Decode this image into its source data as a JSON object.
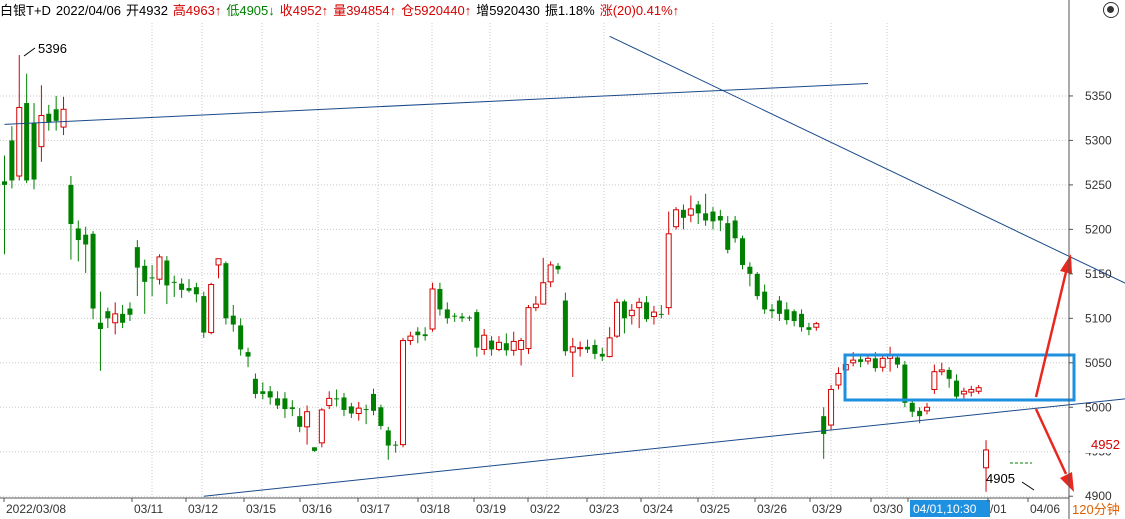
{
  "header": {
    "instrument": "白银T+D",
    "date": "2022/04/06",
    "open": "开4932",
    "high": "高4963↑",
    "low": "低4905↓",
    "close": "收4952↑",
    "volume": "量394854↑",
    "position": "仓5920440↑",
    "increase": "增5920430",
    "amplitude": "振1.18%",
    "change": "涨(20)0.41%↑"
  },
  "colors": {
    "up": "#d40000",
    "down": "#008000",
    "trendline": "#1a4a8a",
    "highlight_box": "#1e90e0",
    "arrow": "#e8281e",
    "grid": "#c8c8c8",
    "axis": "#555555"
  },
  "chart_data": {
    "type": "candlestick",
    "period": "120分钟",
    "ylim": [
      4898,
      5432
    ],
    "y_ticks": [
      4900,
      4950,
      5000,
      5050,
      5100,
      5150,
      5200,
      5250,
      5300,
      5350
    ],
    "x_tick_labels": [
      "2022/03/08",
      "03/11",
      "03/12",
      "03/15",
      "03/16",
      "03/17",
      "03/18",
      "03/19",
      "03/22",
      "03/23",
      "03/24",
      "03/25",
      "03/26",
      "03/29",
      "03/30",
      "04/01,10:30",
      "/01",
      "04/06"
    ],
    "highlighted_x_label": "04/01,10:30",
    "last_price_label": "4952",
    "high_annotation": "5396",
    "low_annotation": "4905",
    "grid": true,
    "candles": [
      [
        5254,
        5250,
        5283,
        5172,
        "d"
      ],
      [
        5300,
        5255,
        5316,
        5246,
        "d"
      ],
      [
        5260,
        5337,
        5396,
        5255,
        "u"
      ],
      [
        5342,
        5255,
        5375,
        5252,
        "d"
      ],
      [
        5320,
        5256,
        5342,
        5245,
        "d"
      ],
      [
        5293,
        5328,
        5362,
        5276,
        "u"
      ],
      [
        5330,
        5320,
        5340,
        5311,
        "d"
      ],
      [
        5335,
        5322,
        5350,
        5311,
        "d"
      ],
      [
        5315,
        5335,
        5349,
        5306,
        "u"
      ],
      [
        5250,
        5206,
        5260,
        5166,
        "d"
      ],
      [
        5201,
        5188,
        5210,
        5164,
        "d"
      ],
      [
        5194,
        5183,
        5203,
        5151,
        "d"
      ],
      [
        5195,
        5111,
        5198,
        5099,
        "d"
      ],
      [
        5095,
        5088,
        5130,
        5041,
        "d"
      ],
      [
        5108,
        5100,
        5112,
        5089,
        "d"
      ],
      [
        5095,
        5105,
        5118,
        5082,
        "u"
      ],
      [
        5105,
        5095,
        5115,
        5089,
        "d"
      ],
      [
        5111,
        5104,
        5118,
        5097,
        "d"
      ],
      [
        5180,
        5157,
        5188,
        5125,
        "d"
      ],
      [
        5159,
        5141,
        5166,
        5105,
        "d"
      ],
      [
        5146,
        5146,
        5160,
        5125,
        "d"
      ],
      [
        5144,
        5169,
        5172,
        5138,
        "u"
      ],
      [
        5165,
        5137,
        5170,
        5116,
        "d"
      ],
      [
        5140,
        5141,
        5148,
        5124,
        "d"
      ],
      [
        5139,
        5132,
        5145,
        5123,
        "d"
      ],
      [
        5134,
        5131,
        5144,
        5129,
        "d"
      ],
      [
        5135,
        5127,
        5140,
        5118,
        "d"
      ],
      [
        5125,
        5084,
        5130,
        5078,
        "d"
      ],
      [
        5084,
        5138,
        5140,
        5082,
        "u"
      ],
      [
        5160,
        5167,
        5167,
        5145,
        "u"
      ],
      [
        5162,
        5100,
        5164,
        5093,
        "d"
      ],
      [
        5103,
        5093,
        5115,
        5085,
        "d"
      ],
      [
        5092,
        5065,
        5100,
        5058,
        "d"
      ],
      [
        5062,
        5057,
        5067,
        5045,
        "d"
      ],
      [
        5032,
        5015,
        5038,
        5010,
        "d"
      ],
      [
        5015,
        5018,
        5028,
        5009,
        "d"
      ],
      [
        5018,
        5011,
        5024,
        5003,
        "d"
      ],
      [
        5010,
        5002,
        5018,
        4998,
        "d"
      ],
      [
        5010,
        4998,
        5017,
        4988,
        "d"
      ],
      [
        5000,
        4998,
        5008,
        4990,
        "d"
      ],
      [
        4990,
        4978,
        4999,
        4972,
        "d"
      ],
      [
        4978,
        4995,
        5002,
        4958,
        "u"
      ],
      [
        4955,
        4951,
        4955,
        4950,
        "d"
      ],
      [
        4960,
        4997,
        4999,
        4955,
        "u"
      ],
      [
        5002,
        5010,
        5018,
        4998,
        "u"
      ],
      [
        5010,
        5010,
        5020,
        5001,
        "d"
      ],
      [
        5011,
        4997,
        5016,
        4990,
        "d"
      ],
      [
        5001,
        4993,
        5005,
        4988,
        "d"
      ],
      [
        4993,
        4999,
        5006,
        4985,
        "u"
      ],
      [
        4998,
        4998,
        5003,
        4981,
        "d"
      ],
      [
        5015,
        4996,
        5021,
        4991,
        "d"
      ],
      [
        5000,
        4979,
        5003,
        4975,
        "d"
      ],
      [
        4974,
        4957,
        4978,
        4941,
        "d"
      ],
      [
        4957,
        4958,
        4962,
        4949,
        "d"
      ],
      [
        4958,
        5075,
        5078,
        4955,
        "u"
      ],
      [
        5075,
        5080,
        5085,
        5070,
        "u"
      ],
      [
        5085,
        5081,
        5090,
        5072,
        "d"
      ],
      [
        5082,
        5080,
        5090,
        5075,
        "d"
      ],
      [
        5088,
        5133,
        5140,
        5085,
        "u"
      ],
      [
        5133,
        5110,
        5140,
        5103,
        "d"
      ],
      [
        5110,
        5100,
        5118,
        5094,
        "d"
      ],
      [
        5102,
        5103,
        5106,
        5096,
        "d"
      ],
      [
        5102,
        5100,
        5106,
        5096,
        "d"
      ],
      [
        5101,
        5101,
        5103,
        5097,
        "d"
      ],
      [
        5107,
        5067,
        5110,
        5057,
        "d"
      ],
      [
        5065,
        5081,
        5088,
        5059,
        "u"
      ],
      [
        5075,
        5065,
        5080,
        5058,
        "d"
      ],
      [
        5065,
        5073,
        5080,
        5063,
        "u"
      ],
      [
        5072,
        5064,
        5083,
        5058,
        "d"
      ],
      [
        5064,
        5074,
        5085,
        5058,
        "u"
      ],
      [
        5065,
        5075,
        5078,
        5047,
        "u"
      ],
      [
        5066,
        5112,
        5115,
        5060,
        "u"
      ],
      [
        5112,
        5116,
        5125,
        5108,
        "u"
      ],
      [
        5116,
        5140,
        5168,
        5116,
        "u"
      ],
      [
        5141,
        5160,
        5164,
        5135,
        "u"
      ],
      [
        5159,
        5155,
        5162,
        5150,
        "d"
      ],
      [
        5120,
        5063,
        5129,
        5058,
        "d"
      ],
      [
        5062,
        5068,
        5078,
        5034,
        "u"
      ],
      [
        5066,
        5067,
        5074,
        5057,
        "u"
      ],
      [
        5068,
        5065,
        5076,
        5061,
        "d"
      ],
      [
        5070,
        5060,
        5076,
        5054,
        "d"
      ],
      [
        5060,
        5057,
        5067,
        5052,
        "d"
      ],
      [
        5057,
        5078,
        5090,
        5056,
        "u"
      ],
      [
        5080,
        5118,
        5122,
        5078,
        "u"
      ],
      [
        5119,
        5100,
        5121,
        5083,
        "d"
      ],
      [
        5103,
        5109,
        5116,
        5093,
        "u"
      ],
      [
        5112,
        5118,
        5123,
        5089,
        "u"
      ],
      [
        5118,
        5099,
        5125,
        5096,
        "d"
      ],
      [
        5102,
        5107,
        5114,
        5093,
        "u"
      ],
      [
        5105,
        5105,
        5115,
        5100,
        "d"
      ],
      [
        5112,
        5195,
        5220,
        5104,
        "u"
      ],
      [
        5203,
        5222,
        5225,
        5200,
        "u"
      ],
      [
        5222,
        5213,
        5228,
        5200,
        "d"
      ],
      [
        5216,
        5223,
        5238,
        5208,
        "u"
      ],
      [
        5228,
        5218,
        5232,
        5206,
        "d"
      ],
      [
        5218,
        5210,
        5240,
        5204,
        "d"
      ],
      [
        5220,
        5209,
        5225,
        5200,
        "d"
      ],
      [
        5215,
        5210,
        5222,
        5198,
        "d"
      ],
      [
        5207,
        5177,
        5215,
        5173,
        "d"
      ],
      [
        5210,
        5190,
        5215,
        5185,
        "d"
      ],
      [
        5190,
        5160,
        5193,
        5155,
        "d"
      ],
      [
        5158,
        5150,
        5163,
        5136,
        "d"
      ],
      [
        5150,
        5125,
        5152,
        5121,
        "d"
      ],
      [
        5130,
        5110,
        5138,
        5105,
        "d"
      ],
      [
        5110,
        5108,
        5116,
        5100,
        "d"
      ],
      [
        5120,
        5105,
        5125,
        5097,
        "d"
      ],
      [
        5110,
        5098,
        5118,
        5093,
        "d"
      ],
      [
        5108,
        5097,
        5110,
        5091,
        "d"
      ],
      [
        5105,
        5090,
        5110,
        5085,
        "d"
      ],
      [
        5090,
        5087,
        5095,
        5081,
        "d"
      ],
      [
        5090,
        5094,
        5096,
        5086,
        "u"
      ],
      [
        4990,
        4970,
        5000,
        4942,
        "d"
      ],
      [
        4980,
        5020,
        5025,
        4975,
        "u"
      ],
      [
        5025,
        5038,
        5045,
        5020,
        "u"
      ],
      [
        5042,
        5048,
        5055,
        5036,
        "u"
      ],
      [
        5050,
        5053,
        5062,
        5046,
        "u"
      ],
      [
        5054,
        5051,
        5060,
        5045,
        "d"
      ],
      [
        5052,
        5055,
        5058,
        5048,
        "u"
      ],
      [
        5055,
        5044,
        5062,
        5040,
        "d"
      ],
      [
        5045,
        5055,
        5060,
        5040,
        "u"
      ],
      [
        5055,
        5058,
        5068,
        5040,
        "u"
      ],
      [
        5056,
        5048,
        5060,
        5044,
        "d"
      ],
      [
        5048,
        5005,
        5052,
        5000,
        "d"
      ],
      [
        5005,
        4995,
        5008,
        4989,
        "d"
      ],
      [
        4996,
        4990,
        5000,
        4982,
        "d"
      ],
      [
        4996,
        5000,
        5005,
        4992,
        "u"
      ],
      [
        5020,
        5040,
        5048,
        5015,
        "u"
      ],
      [
        5040,
        5042,
        5050,
        5036,
        "u"
      ],
      [
        5042,
        5032,
        5045,
        5022,
        "d"
      ],
      [
        5030,
        5012,
        5037,
        5008,
        "d"
      ],
      [
        5015,
        5018,
        5022,
        5010,
        "u"
      ],
      [
        5017,
        5020,
        5024,
        5012,
        "u"
      ],
      [
        5018,
        5022,
        5025,
        5015,
        "u"
      ],
      [
        4932,
        4952,
        4963,
        4905,
        "u"
      ]
    ],
    "trendlines": [
      {
        "from": [
          0,
          5318
        ],
        "to": [
          117,
          5364
        ]
      },
      {
        "from": [
          82,
          5417
        ],
        "to": [
          190,
          4988
        ]
      },
      {
        "from": [
          27,
          4900
        ],
        "to": [
          189,
          5042
        ]
      }
    ]
  }
}
